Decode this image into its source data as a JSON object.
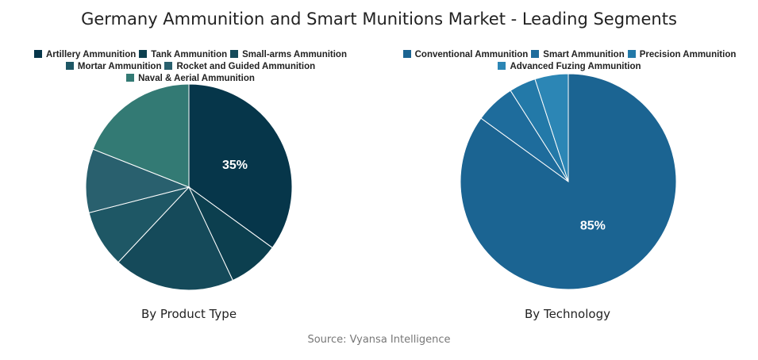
{
  "title": "Germany Ammunition and Smart Munitions Market - Leading Segments",
  "source": "Source: Vyansa Intelligence",
  "chart_data": [
    {
      "type": "pie",
      "subtitle": "By Product Type",
      "legend_position": "top",
      "categories": [
        "Artillery Ammunition",
        "Tank Ammunition",
        "Small-arms Ammunition",
        "Mortar Ammunition",
        "Rocket and Guided Ammunition",
        "Naval & Aerial Ammunition"
      ],
      "values": [
        35,
        8,
        19,
        9,
        10,
        19
      ],
      "colors": [
        "#06364a",
        "#0c3f4f",
        "#154a5a",
        "#1e5765",
        "#29606e",
        "#337a74"
      ],
      "data_labels": [
        "35%",
        "",
        "",
        "",
        "",
        ""
      ]
    },
    {
      "type": "pie",
      "subtitle": "By Technology",
      "legend_position": "top",
      "categories": [
        "Conventional Ammunition",
        "Smart Ammunition",
        "Precision Ammunition",
        "Advanced Fuzing Ammunition"
      ],
      "values": [
        85,
        6,
        4,
        5
      ],
      "colors": [
        "#1b6492",
        "#1e6c9c",
        "#2379a8",
        "#2c86b5"
      ],
      "data_labels": [
        "85%",
        "",
        "",
        ""
      ]
    }
  ]
}
